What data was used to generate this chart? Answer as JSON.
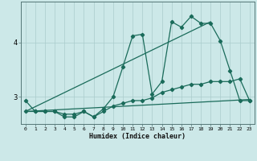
{
  "title": "",
  "xlabel": "Humidex (Indice chaleur)",
  "x_ticks": [
    0,
    1,
    2,
    3,
    4,
    5,
    6,
    7,
    8,
    9,
    10,
    11,
    12,
    13,
    14,
    15,
    16,
    17,
    18,
    19,
    20,
    21,
    22,
    23
  ],
  "y_ticks": [
    3,
    4
  ],
  "xlim": [
    -0.5,
    23.5
  ],
  "ylim": [
    2.5,
    4.75
  ],
  "bg_color": "#cce8e8",
  "grid_color": "#aacccc",
  "line_color": "#1a6b5a",
  "line1_x": [
    0,
    1,
    2,
    3,
    4,
    5,
    6,
    7,
    8,
    9,
    10,
    11,
    12,
    13,
    14,
    15,
    16,
    17,
    18,
    19,
    20,
    21,
    22,
    23
  ],
  "line1_y": [
    2.93,
    2.73,
    2.73,
    2.73,
    2.63,
    2.63,
    2.73,
    2.63,
    2.78,
    3.0,
    3.55,
    4.12,
    4.15,
    3.05,
    3.28,
    4.38,
    4.28,
    4.48,
    4.35,
    4.35,
    4.03,
    3.48,
    2.93,
    2.93
  ],
  "line2_x": [
    0,
    19
  ],
  "line2_y": [
    2.73,
    4.38
  ],
  "line3_x": [
    0,
    23
  ],
  "line3_y": [
    2.73,
    2.95
  ],
  "line4_x": [
    0,
    1,
    2,
    3,
    4,
    5,
    6,
    7,
    8,
    9,
    10,
    11,
    12,
    13,
    14,
    15,
    16,
    17,
    18,
    19,
    20,
    21,
    22,
    23
  ],
  "line4_y": [
    2.73,
    2.73,
    2.73,
    2.73,
    2.68,
    2.68,
    2.73,
    2.63,
    2.73,
    2.83,
    2.88,
    2.93,
    2.93,
    2.98,
    3.08,
    3.13,
    3.18,
    3.23,
    3.23,
    3.28,
    3.28,
    3.28,
    3.33,
    2.93
  ]
}
